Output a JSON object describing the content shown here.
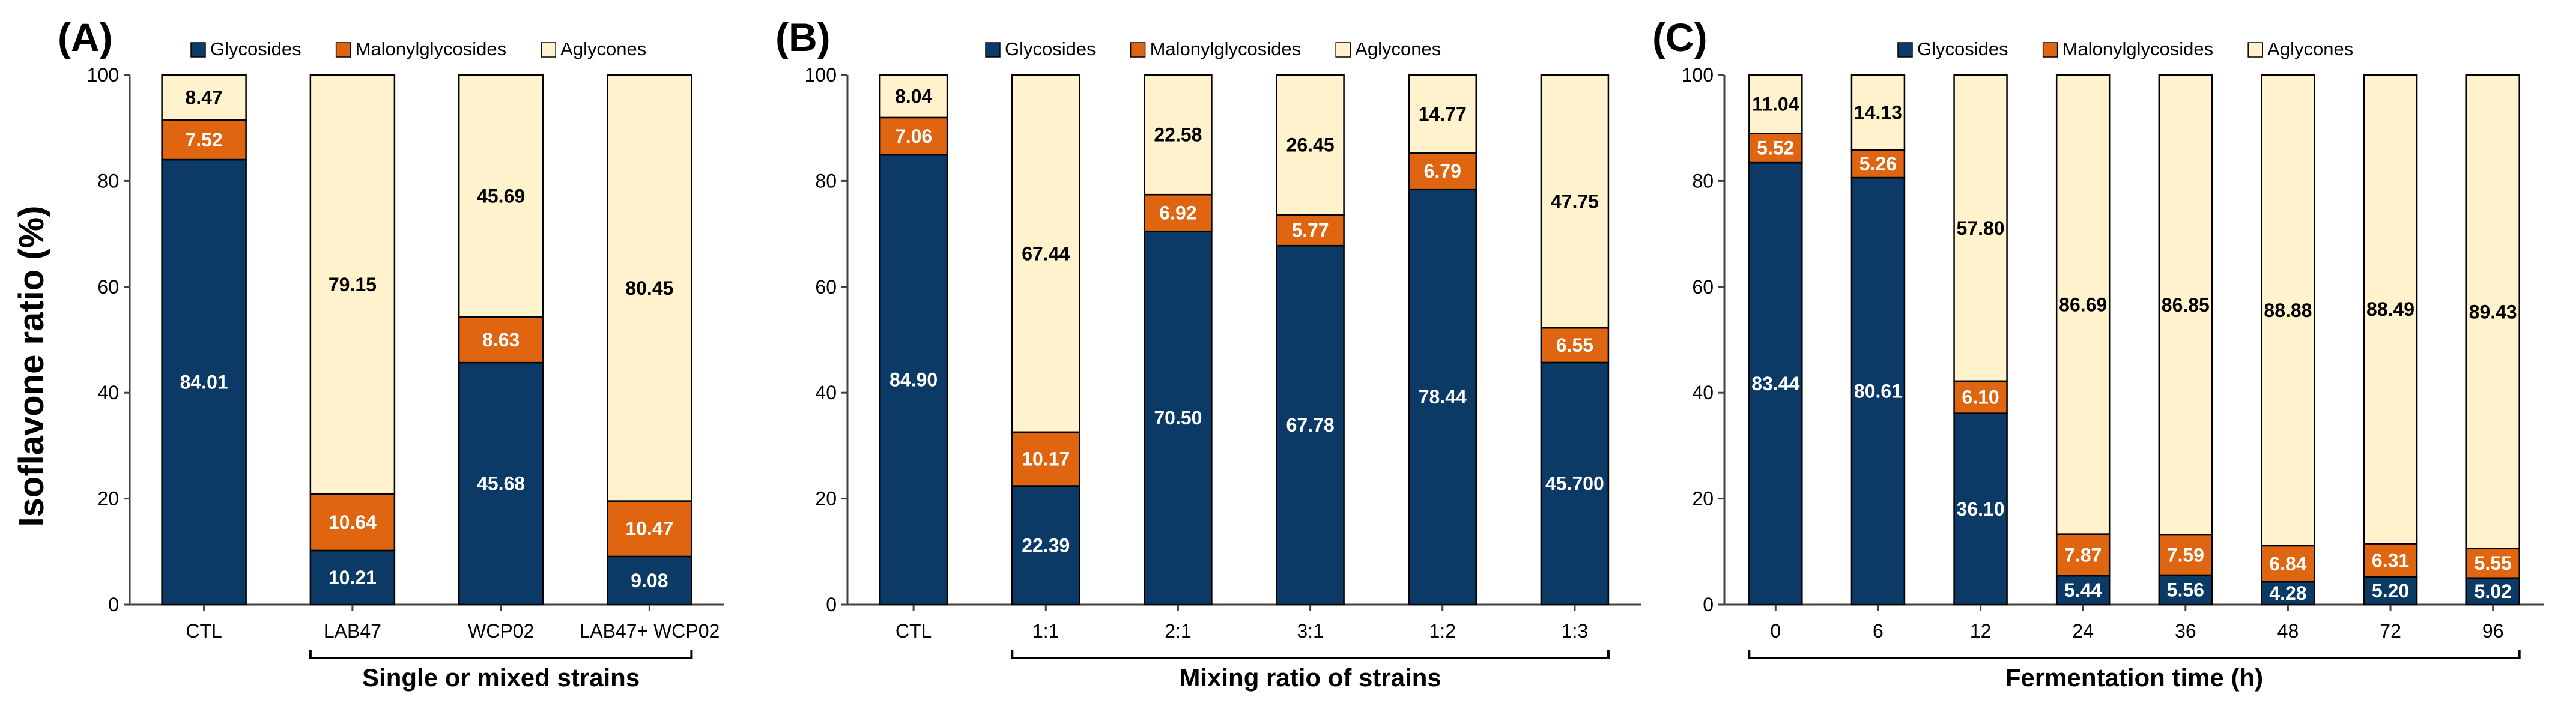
{
  "figure": {
    "y_axis_title": "Isoflavone ratio (%)",
    "legend": [
      "Glycosides",
      "Malonylglycosides",
      "Aglycones"
    ]
  },
  "colors": {
    "glycosides": "#0b3a66",
    "malonylglycosides": "#e06510",
    "aglycones": "#fff2cc",
    "axis": "#404040",
    "bar_outline": "#000000"
  },
  "chart_data": [
    {
      "type": "bar",
      "stacked": true,
      "panel_label": "(A)",
      "xlabel": "Single or mixed strains",
      "ylabel": "Isoflavone ratio (%)",
      "ylim": [
        0,
        100
      ],
      "yticks": [
        0,
        20,
        40,
        60,
        80,
        100
      ],
      "grid": false,
      "legend_position": "top",
      "categories": [
        "CTL",
        "LAB47",
        "WCP02",
        "LAB47+ WCP02"
      ],
      "series": [
        {
          "name": "Glycosides",
          "values": [
            84.01,
            10.21,
            45.68,
            9.08
          ],
          "labels": [
            "84.01",
            "10.21",
            "45.68",
            "9.08"
          ]
        },
        {
          "name": "Malonylglycosides",
          "values": [
            7.52,
            10.64,
            8.63,
            10.47
          ],
          "labels": [
            "7.52",
            "10.64",
            "8.63",
            "10.47"
          ]
        },
        {
          "name": "Aglycones",
          "values": [
            8.47,
            79.15,
            45.69,
            80.45
          ],
          "labels": [
            "8.47",
            "79.15",
            "45.69",
            "80.45"
          ]
        }
      ]
    },
    {
      "type": "bar",
      "stacked": true,
      "panel_label": "(B)",
      "xlabel": "Mixing ratio of strains",
      "ylabel": "",
      "ylim": [
        0,
        100
      ],
      "yticks": [
        0,
        20,
        40,
        60,
        80,
        100
      ],
      "grid": false,
      "legend_position": "top",
      "categories": [
        "CTL",
        "1:1",
        "2:1",
        "3:1",
        "1:2",
        "1:3"
      ],
      "series": [
        {
          "name": "Glycosides",
          "values": [
            84.9,
            22.39,
            70.5,
            67.78,
            78.44,
            45.7
          ],
          "labels": [
            "84.90",
            "22.39",
            "70.50",
            "67.78",
            "78.44",
            "45.700"
          ]
        },
        {
          "name": "Malonylglycosides",
          "values": [
            7.06,
            10.17,
            6.92,
            5.77,
            6.79,
            6.55
          ],
          "labels": [
            "7.06",
            "10.17",
            "6.92",
            "5.77",
            "6.79",
            "6.55"
          ]
        },
        {
          "name": "Aglycones",
          "values": [
            8.04,
            67.44,
            22.58,
            26.45,
            14.77,
            47.75
          ],
          "labels": [
            "8.04",
            "67.44",
            "22.58",
            "26.45",
            "14.77",
            "47.75"
          ]
        }
      ]
    },
    {
      "type": "bar",
      "stacked": true,
      "panel_label": "(C)",
      "xlabel": "Fermentation time (h)",
      "ylabel": "",
      "ylim": [
        0,
        100
      ],
      "yticks": [
        0,
        20,
        40,
        60,
        80,
        100
      ],
      "grid": false,
      "legend_position": "top",
      "categories": [
        "0",
        "6",
        "12",
        "24",
        "36",
        "48",
        "72",
        "96"
      ],
      "series": [
        {
          "name": "Glycosides",
          "values": [
            83.44,
            80.61,
            36.1,
            5.44,
            5.56,
            4.28,
            5.2,
            5.02
          ],
          "labels": [
            "83.44",
            "80.61",
            "36.10",
            "5.44",
            "5.56",
            "4.28",
            "5.20",
            "5.02"
          ]
        },
        {
          "name": "Malonylglycosides",
          "values": [
            5.52,
            5.26,
            6.1,
            7.87,
            7.59,
            6.84,
            6.31,
            5.55
          ],
          "labels": [
            "5.52",
            "5.26",
            "6.10",
            "7.87",
            "7.59",
            "6.84",
            "6.31",
            "5.55"
          ]
        },
        {
          "name": "Aglycones",
          "values": [
            11.04,
            14.13,
            57.8,
            86.69,
            86.85,
            88.88,
            88.49,
            89.43
          ],
          "labels": [
            "11.04",
            "14.13",
            "57.80",
            "86.69",
            "86.85",
            "88.88",
            "88.49",
            "89.43"
          ]
        }
      ]
    }
  ]
}
